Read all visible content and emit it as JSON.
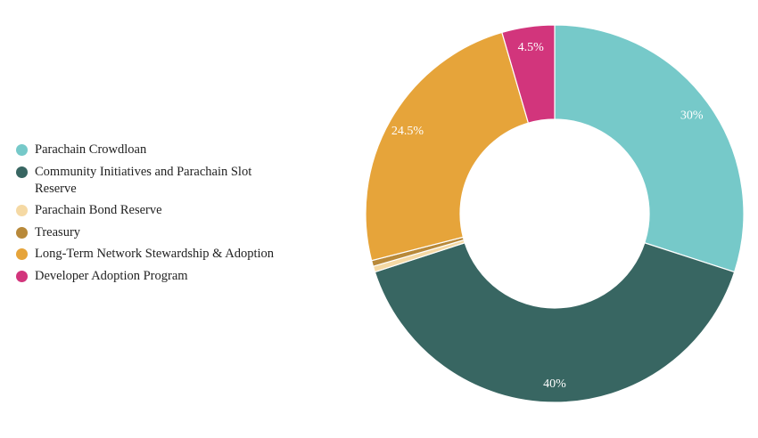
{
  "chart_data": {
    "type": "pie",
    "variant": "donut",
    "legend_position": "left",
    "slices": [
      {
        "label": "Parachain Crowdloan",
        "value": 30,
        "data_label": "30%",
        "color": "#76c9c9"
      },
      {
        "label": "Community Initiatives and Parachain Slot Reserve",
        "value": 40,
        "data_label": "40%",
        "color": "#386662"
      },
      {
        "label": "Parachain Bond Reserve",
        "value": 0.5,
        "data_label": "",
        "color": "#f5d9a4"
      },
      {
        "label": "Treasury",
        "value": 0.5,
        "data_label": "",
        "color": "#b8893a"
      },
      {
        "label": "Long-Term Network Stewardship & Adoption",
        "value": 24.5,
        "data_label": "24.5%",
        "color": "#e6a43a"
      },
      {
        "label": "Developer Adoption Program",
        "value": 4.5,
        "data_label": "4.5%",
        "color": "#d2357c"
      }
    ]
  }
}
